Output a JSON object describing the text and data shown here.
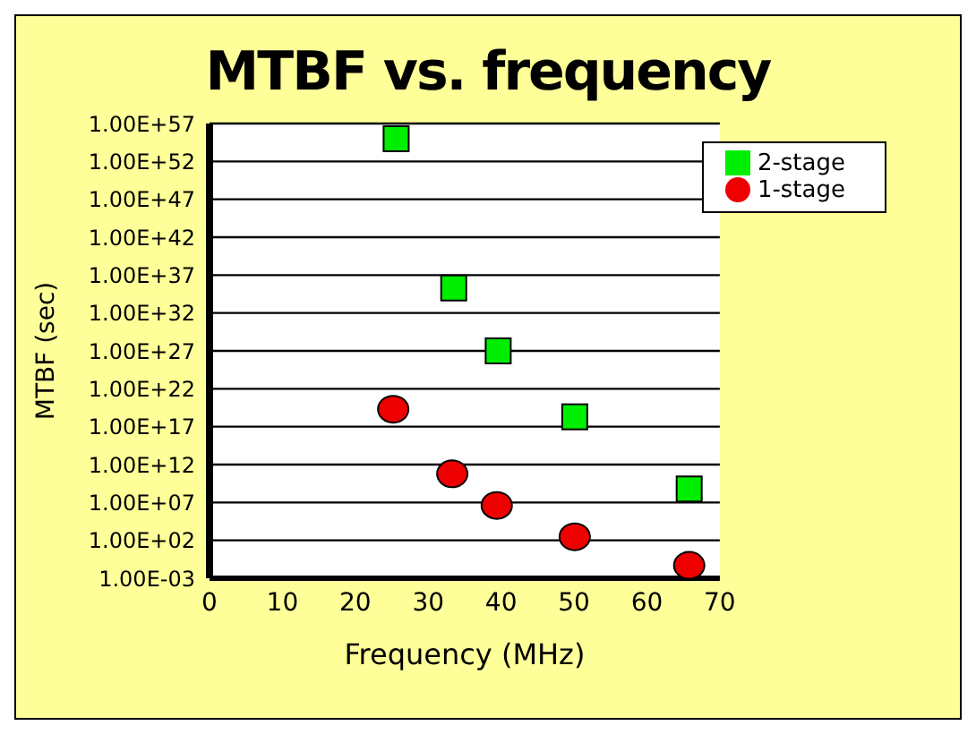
{
  "chart_data": {
    "type": "scatter",
    "title": "MTBF vs. frequency",
    "xlabel": "Frequency (MHz)",
    "ylabel": "MTBF (sec)",
    "log": "y",
    "xlim": [
      0,
      70
    ],
    "xticks": [
      0,
      10,
      20,
      30,
      40,
      50,
      60,
      70
    ],
    "ylim": [
      0.001,
      1e+57
    ],
    "yticks": [
      {
        "value": 0.001,
        "label": "1.00E-03"
      },
      {
        "value": 100.0,
        "label": "1.00E+02"
      },
      {
        "value": 10000000.0,
        "label": "1.00E+07"
      },
      {
        "value": 1000000000000.0,
        "label": "1.00E+12"
      },
      {
        "value": 1e+17,
        "label": "1.00E+17"
      },
      {
        "value": 1e+22,
        "label": "1.00E+22"
      },
      {
        "value": 1e+27,
        "label": "1.00E+27"
      },
      {
        "value": 1e+32,
        "label": "1.00E+32"
      },
      {
        "value": 1e+37,
        "label": "1.00E+37"
      },
      {
        "value": 1e+42,
        "label": "1.00E+42"
      },
      {
        "value": 1e+47,
        "label": "1.00E+47"
      },
      {
        "value": 1e+52,
        "label": "1.00E+52"
      },
      {
        "value": 1e+57,
        "label": "1.00E+57"
      }
    ],
    "grid": "y",
    "legend": "top right",
    "series": [
      {
        "name": "2-stage",
        "color": "#00ee00",
        "marker": "square",
        "x": [
          25.6,
          33.5,
          39.6,
          50.1,
          65.8
        ],
        "values": [
          1e+55,
          2e+35,
          1e+27,
          2e+18,
          600000000.0
        ]
      },
      {
        "name": "1-stage",
        "color": "#ee0000",
        "marker": "circle",
        "x": [
          25.2,
          33.3,
          39.4,
          50.1,
          65.8
        ],
        "values": [
          2e+19,
          60000000000.0,
          4000000.0,
          300.0,
          0.05
        ]
      }
    ]
  }
}
